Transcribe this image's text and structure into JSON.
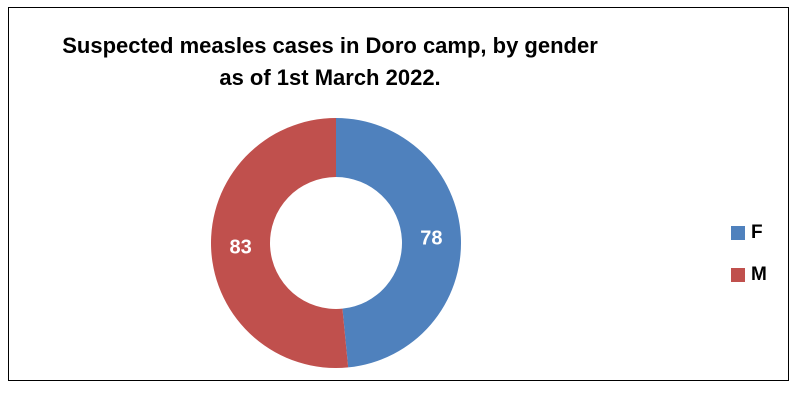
{
  "chart_data": {
    "type": "pie",
    "variant": "donut",
    "title": [
      "Suspected measles cases in Doro camp, by gender",
      "as of 1st March 2022."
    ],
    "slices": [
      {
        "label": "F",
        "value": 78,
        "color": "#4F81BD"
      },
      {
        "label": "M",
        "value": 83,
        "color": "#C0504D"
      }
    ],
    "start_angle_deg": 0,
    "direction": "clockwise",
    "data_labels": "inside",
    "legend": "right"
  }
}
